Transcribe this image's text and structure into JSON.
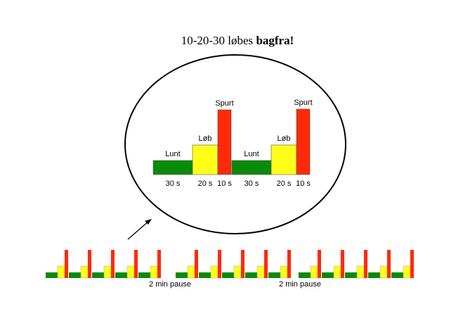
{
  "title": {
    "text": "10-20-30 løbes",
    "emphasis": "bagfra!"
  },
  "zoom": {
    "cycles": [
      {
        "segments": [
          {
            "label": "Lunt",
            "duration": "30 s"
          },
          {
            "label": "Løb",
            "duration": "20 s"
          },
          {
            "label": "Spurt",
            "duration": "10 s"
          }
        ]
      },
      {
        "segments": [
          {
            "label": "Lunt",
            "duration": "30 s"
          },
          {
            "label": "Løb",
            "duration": "20 s"
          },
          {
            "label": "Spurt",
            "duration": "10 s"
          }
        ]
      }
    ]
  },
  "pauses": [
    "2 min pause",
    "2 min pause"
  ]
}
